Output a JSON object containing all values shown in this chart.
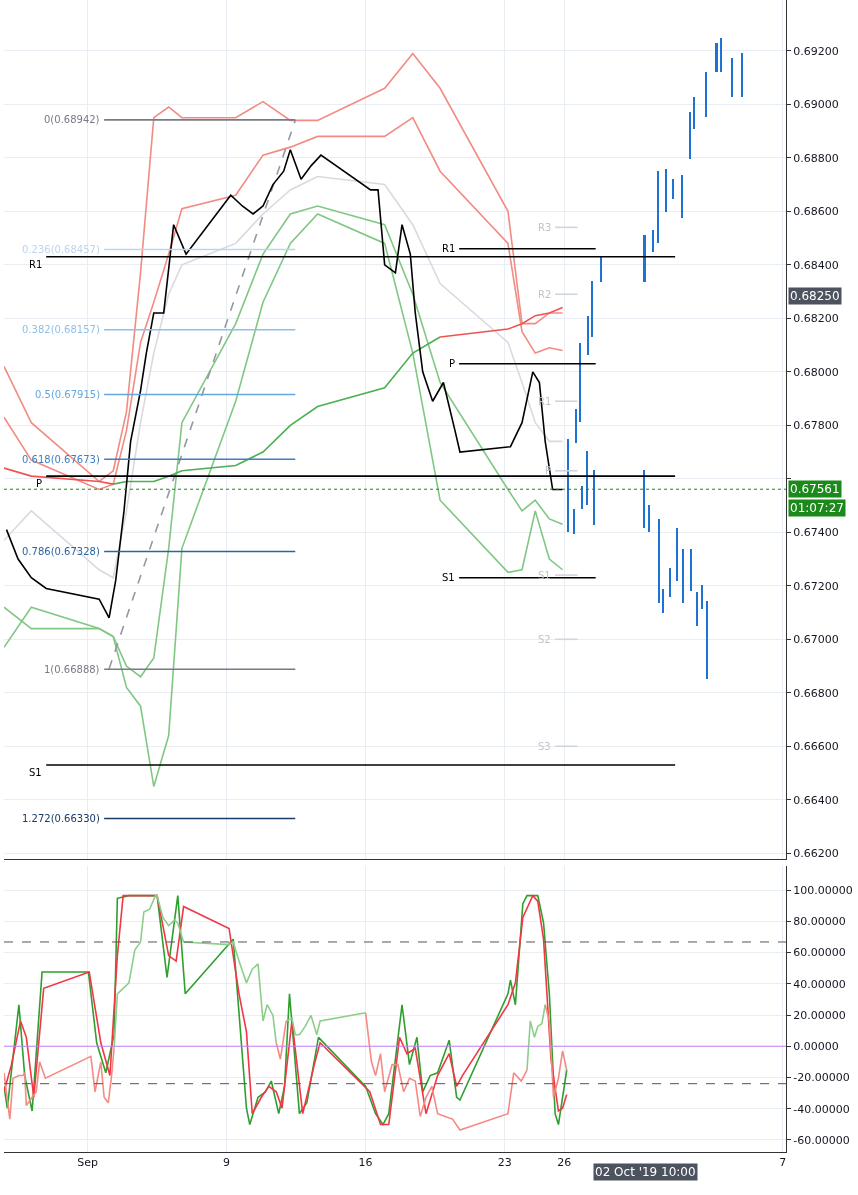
{
  "chart_data": [
    {
      "type": "line",
      "tick_labels": "y",
      "grid": true,
      "xlim": [
        "2019-08-28T19:00",
        "2019-10-07T04:00"
      ],
      "ylim": [
        0.6618,
        0.6939
      ],
      "xticks": [
        {
          "value": "2019-09-02",
          "label": null
        },
        {
          "value": "2019-09-09",
          "label": null
        },
        {
          "value": "2019-09-16",
          "label": null
        },
        {
          "value": "2019-09-23",
          "label": null
        },
        {
          "value": "2019-09-26",
          "label": null
        },
        {
          "value": "2019-10-07",
          "label": null
        }
      ],
      "yticks": [
        {
          "value": 0.662,
          "label": "0.66200"
        },
        {
          "value": 0.664,
          "label": "0.66400"
        },
        {
          "value": 0.666,
          "label": "0.66600"
        },
        {
          "value": 0.668,
          "label": "0.66800"
        },
        {
          "value": 0.67,
          "label": "0.67000"
        },
        {
          "value": 0.672,
          "label": "0.67200"
        },
        {
          "value": 0.674,
          "label": "0.67400"
        },
        {
          "value": 0.676,
          "label": null
        },
        {
          "value": 0.678,
          "label": "0.67800"
        },
        {
          "value": 0.68,
          "label": "0.68000"
        },
        {
          "value": 0.682,
          "label": "0.68200"
        },
        {
          "value": 0.684,
          "label": "0.68400"
        },
        {
          "value": 0.686,
          "label": "0.68600"
        },
        {
          "value": 0.688,
          "label": "0.68800"
        },
        {
          "value": 0.69,
          "label": "0.69000"
        },
        {
          "value": 0.692,
          "label": "0.69200"
        }
      ],
      "series": [
        {
          "color": "#f28b82",
          "x": [
            "2019-08-28T19:00",
            "2019-08-30T04:00",
            "2019-09-02T14:00",
            "2019-09-03T07:00",
            "2019-09-03T23:00",
            "2019-09-04T16:00",
            "2019-09-05T08:00",
            "2019-09-06T02:00",
            "2019-09-06T18:00",
            "2019-09-09T11:00",
            "2019-09-10T20:00",
            "2019-09-12T05:00",
            "2019-09-13T14:00",
            "2019-09-16T23:00",
            "2019-09-18T09:00",
            "2019-09-19T18:00",
            "2019-09-23T04:00",
            "2019-09-23T21:00",
            "2019-09-24T13:00",
            "2019-09-25T06:00",
            "2019-09-25T22:00"
          ],
          "values": [
            0.6802,
            0.6781,
            0.6759,
            0.6763,
            0.6785,
            0.6837,
            0.6895,
            0.6899,
            0.6895,
            0.6895,
            0.6901,
            0.6894,
            0.6894,
            0.6906,
            0.6919,
            0.6906,
            0.686,
            0.6818,
            0.6818,
            0.6822,
            0.6822
          ]
        },
        {
          "color": "#f28b82",
          "x": [
            "2019-08-28T19:00",
            "2019-08-30T04:00",
            "2019-09-02T14:00",
            "2019-09-03T07:00",
            "2019-09-03T23:00",
            "2019-09-04T16:00",
            "2019-09-05T08:00",
            "2019-09-06T02:00",
            "2019-09-06T18:00",
            "2019-09-09T11:00",
            "2019-09-10T20:00",
            "2019-09-12T05:00",
            "2019-09-13T14:00",
            "2019-09-16T23:00",
            "2019-09-18T09:00",
            "2019-09-19T18:00",
            "2019-09-23T04:00",
            "2019-09-23T21:00",
            "2019-09-24T13:00",
            "2019-09-25T06:00",
            "2019-09-25T22:00"
          ],
          "values": [
            0.6783,
            0.6767,
            0.6756,
            0.6758,
            0.6778,
            0.6811,
            0.6826,
            0.6844,
            0.6861,
            0.6866,
            0.6881,
            0.6884,
            0.6888,
            0.6888,
            0.6895,
            0.6875,
            0.6848,
            0.6815,
            0.6807,
            0.6809,
            0.6808
          ]
        },
        {
          "color": "#d9dae0",
          "x": [
            "2019-08-28T19:00",
            "2019-08-30T04:00",
            "2019-09-02T14:00",
            "2019-09-03T07:00",
            "2019-09-03T23:00",
            "2019-09-04T16:00",
            "2019-09-05T08:00",
            "2019-09-06T02:00",
            "2019-09-06T18:00",
            "2019-09-09T11:00",
            "2019-09-10T20:00",
            "2019-09-12T05:00",
            "2019-09-13T14:00",
            "2019-09-16T23:00",
            "2019-09-18T09:00",
            "2019-09-19T18:00",
            "2019-09-23T04:00",
            "2019-09-23T21:00",
            "2019-09-24T13:00",
            "2019-09-25T06:00",
            "2019-09-25T22:00"
          ],
          "values": [
            0.6737,
            0.6748,
            0.6726,
            0.6723,
            0.6748,
            0.6781,
            0.6807,
            0.6829,
            0.684,
            0.6848,
            0.6859,
            0.6868,
            0.6873,
            0.687,
            0.6855,
            0.6833,
            0.6811,
            0.6796,
            0.6781,
            0.6774,
            0.6774
          ]
        },
        {
          "color": "#81c784",
          "x": [
            "2019-08-28T19:00",
            "2019-08-30T04:00",
            "2019-09-02T14:00",
            "2019-09-03T07:00",
            "2019-09-03T23:00",
            "2019-09-04T16:00",
            "2019-09-05T08:00",
            "2019-09-06T02:00",
            "2019-09-06T18:00",
            "2019-09-09T11:00",
            "2019-09-10T20:00",
            "2019-09-12T05:00",
            "2019-09-13T14:00",
            "2019-09-16T23:00",
            "2019-09-18T09:00",
            "2019-09-19T18:00",
            "2019-09-23T04:00",
            "2019-09-23T21:00",
            "2019-09-24T13:00",
            "2019-09-25T06:00",
            "2019-09-25T22:00"
          ],
          "values": [
            0.6712,
            0.6704,
            0.6704,
            0.6701,
            0.669,
            0.6686,
            0.6693,
            0.6734,
            0.6781,
            0.6818,
            0.6844,
            0.6859,
            0.6862,
            0.6855,
            0.6829,
            0.6796,
            0.6756,
            0.6748,
            0.6752,
            0.6745,
            0.6743
          ]
        },
        {
          "color": "#81c784",
          "x": [
            "2019-08-28T19:00",
            "2019-08-30T04:00",
            "2019-09-02T14:00",
            "2019-09-03T07:00",
            "2019-09-03T23:00",
            "2019-09-04T16:00",
            "2019-09-05T08:00",
            "2019-09-06T02:00",
            "2019-09-06T18:00",
            "2019-09-09T11:00",
            "2019-09-10T20:00",
            "2019-09-12T05:00",
            "2019-09-13T14:00",
            "2019-09-16T23:00",
            "2019-09-18T09:00",
            "2019-09-19T18:00",
            "2019-09-23T04:00",
            "2019-09-23T21:00",
            "2019-09-24T13:00",
            "2019-09-25T06:00",
            "2019-09-25T22:00"
          ],
          "values": [
            0.6697,
            0.6712,
            0.6704,
            0.6701,
            0.6682,
            0.6675,
            0.6645,
            0.6664,
            0.6734,
            0.6789,
            0.6826,
            0.6848,
            0.6859,
            0.6848,
            0.6807,
            0.6752,
            0.6725,
            0.6726,
            0.6748,
            0.673,
            0.6726
          ]
        },
        {
          "color": "#ef5350",
          "x": [
            "2019-08-28T19:00",
            "2019-08-30T04:00",
            "2019-09-02T14:00",
            "2019-09-03T07:00"
          ],
          "values": [
            0.6764,
            0.6761,
            0.6759,
            0.6758
          ]
        },
        {
          "color": "#4caf50",
          "x": [
            "2019-09-03T07:00",
            "2019-09-03T23:00",
            "2019-09-04T16:00",
            "2019-09-05T08:00",
            "2019-09-06T02:00",
            "2019-09-06T18:00",
            "2019-09-09T11:00",
            "2019-09-10T20:00",
            "2019-09-12T05:00",
            "2019-09-13T14:00",
            "2019-09-16T23:00",
            "2019-09-18T09:00",
            "2019-09-19T18:00"
          ],
          "values": [
            0.6758,
            0.6759,
            0.6759,
            0.6759,
            0.6761,
            0.6763,
            0.6765,
            0.677,
            0.678,
            0.6787,
            0.6794,
            0.6807,
            0.6813
          ]
        },
        {
          "color": "#ef5350",
          "x": [
            "2019-09-19T18:00",
            "2019-09-23T04:00",
            "2019-09-23T21:00",
            "2019-09-24T13:00",
            "2019-09-25T06:00",
            "2019-09-25T22:00"
          ],
          "values": [
            0.6813,
            0.6816,
            0.6818,
            0.6821,
            0.6822,
            0.6824
          ]
        },
        {
          "color": "#9598a1",
          "line_style": "dashed",
          "x": [
            "2019-09-03T02:00",
            "2019-09-12T11:00"
          ],
          "values": [
            0.6689,
            0.6894
          ]
        },
        {
          "color": "#000000",
          "x": [
            "2019-08-28T22:00",
            "2019-08-29T12:00",
            "2019-08-30T04:00",
            "2019-08-30T22:00",
            "2019-09-02T14:00",
            "2019-09-03T02:00",
            "2019-09-03T10:00",
            "2019-09-03T20:00",
            "2019-09-04T04:00",
            "2019-09-04T16:00",
            "2019-09-04T23:00",
            "2019-09-05T08:00",
            "2019-09-05T20:00",
            "2019-09-06T08:00",
            "2019-09-06T23:00",
            "2019-09-09T05:00",
            "2019-09-09T19:00",
            "2019-09-10T08:00",
            "2019-09-10T20:00",
            "2019-09-11T08:00",
            "2019-09-11T21:00",
            "2019-09-12T05:00",
            "2019-09-12T18:00",
            "2019-09-13T06:00",
            "2019-09-13T18:00",
            "2019-09-16T06:00",
            "2019-09-16T15:00",
            "2019-09-16T23:00",
            "2019-09-17T12:00",
            "2019-09-17T20:00",
            "2019-09-18T06:00",
            "2019-09-18T12:00",
            "2019-09-18T21:00",
            "2019-09-19T09:00",
            "2019-09-19T22:00",
            "2019-09-20T12:00",
            "2019-09-20T18:00",
            "2019-09-23T07:00",
            "2019-09-23T21:00",
            "2019-09-24T10:00",
            "2019-09-24T18:00",
            "2019-09-25T01:00",
            "2019-09-25T10:00",
            "2019-09-25T22:00"
          ],
          "values": [
            0.6741,
            0.673,
            0.6723,
            0.6719,
            0.6715,
            0.6708,
            0.6722,
            0.6748,
            0.6774,
            0.6793,
            0.6807,
            0.6822,
            0.6822,
            0.6855,
            0.6844,
            0.6866,
            0.6862,
            0.6859,
            0.6862,
            0.687,
            0.6875,
            0.6883,
            0.6872,
            0.6877,
            0.6881,
            0.6868,
            0.6868,
            0.684,
            0.6837,
            0.6855,
            0.6844,
            0.6822,
            0.68,
            0.6789,
            0.6796,
            0.6778,
            0.677,
            0.6772,
            0.6781,
            0.68,
            0.6796,
            0.6774,
            0.6756,
            0.6756
          ]
        },
        {
          "type": "bar",
          "color": "#1e73d2",
          "x": [
            "2019-09-26T04:00",
            "2019-09-26T12:00",
            "2019-09-26T14:00",
            "2019-09-26T19:00",
            "2019-09-26T22:00",
            "2019-09-27T03:00",
            "2019-09-27T05:00",
            "2019-09-27T10:00",
            "2019-09-27T12:00",
            "2019-09-27T20:00",
            "2019-09-30T00:00",
            "2019-09-30T01:00",
            "2019-09-30T07:00",
            "2019-09-30T11:00",
            "2019-09-30T17:00",
            "2019-09-30T18:00",
            "2019-09-30T23:00",
            "2019-10-01T03:00",
            "2019-10-01T08:00",
            "2019-10-01T12:00",
            "2019-10-01T16:00",
            "2019-10-01T22:00",
            "2019-10-01T23:00",
            "2019-10-02T08:00",
            "2019-10-02T09:00",
            "2019-10-02T13:00",
            "2019-10-02T16:00",
            "2019-10-02T23:00",
            "2019-10-03T03:00",
            "2019-10-03T04:00",
            "2019-10-03T16:00",
            "2019-10-03T22:00",
            "2019-10-04T11:00",
            "2019-10-04T23:00"
          ],
          "base": [
            0.67403,
            0.67395,
            0.67733,
            0.67811,
            0.67487,
            0.67502,
            0.68061,
            0.6813,
            0.67428,
            0.68336,
            0.67417,
            0.68336,
            0.67403,
            0.68447,
            0.68483,
            0.67134,
            0.67098,
            0.68597,
            0.6716,
            0.68645,
            0.67219,
            0.68575,
            0.67134,
            0.68796,
            0.67182,
            0.68906,
            0.6705,
            0.67112,
            0.68954,
            0.66851,
            0.69119,
            0.69119,
            0.69027,
            0.69027
          ],
          "values": [
            0.00345,
            0.00092,
            0.00129,
            0.00298,
            0.00085,
            0.00202,
            0.00147,
            0.0021,
            0.00206,
            0.00092,
            0.00217,
            0.00177,
            0.00099,
            0.00085,
            0.00268,
            0.00316,
            0.00091,
            0.00162,
            0.00107,
            0.00077,
            0.00198,
            0.00162,
            0.00202,
            0.00176,
            0.00154,
            0.00121,
            0.00125,
            0.00092,
            0.00165,
            0.00291,
            0.0011,
            0.00129,
            0.00147,
            0.00166
          ]
        },
        {
          "name": "0(0.68942)",
          "color": "#787b86",
          "x": [
            "2019-09-02T20:00",
            "2019-09-12T11:00"
          ],
          "values": [
            0.68942,
            0.68942
          ]
        },
        {
          "name": "0.236(0.68457)",
          "color": "#bcd5ee",
          "x": [
            "2019-09-02T20:00",
            "2019-09-12T11:00"
          ],
          "values": [
            0.68457,
            0.68457
          ]
        },
        {
          "name": "0.382(0.68157)",
          "color": "#90bfe6",
          "x": [
            "2019-09-02T20:00",
            "2019-09-12T11:00"
          ],
          "values": [
            0.68157,
            0.68157
          ]
        },
        {
          "name": "0.5(0.67915)",
          "color": "#64a6e0",
          "x": [
            "2019-09-02T20:00",
            "2019-09-12T11:00"
          ],
          "values": [
            0.67915,
            0.67915
          ]
        },
        {
          "name": "0.618(0.67673)",
          "color": "#3d7fc0",
          "x": [
            "2019-09-02T20:00",
            "2019-09-12T11:00"
          ],
          "values": [
            0.67673,
            0.67673
          ]
        },
        {
          "name": "0.786(0.67328)",
          "color": "#2d63a0",
          "x": [
            "2019-09-02T20:00",
            "2019-09-12T11:00"
          ],
          "values": [
            0.67328,
            0.67328
          ]
        },
        {
          "name": "1(0.66888)",
          "color": "#787b86",
          "x": [
            "2019-09-02T20:00",
            "2019-09-12T11:00"
          ],
          "values": [
            0.66888,
            0.66888
          ]
        },
        {
          "name": "1.272(0.66330)",
          "color": "#1a3a6b",
          "x": [
            "2019-09-02T20:00",
            "2019-09-12T11:00"
          ],
          "values": [
            0.6633,
            0.6633
          ]
        },
        {
          "name": "R1",
          "color": "#000000",
          "x": [
            "2019-08-30T22:00",
            "2019-10-01T14:00"
          ],
          "values": [
            0.6843,
            0.6843
          ]
        },
        {
          "name": "P",
          "color": "#000000",
          "x": [
            "2019-08-30T22:00",
            "2019-10-01T14:00"
          ],
          "values": [
            0.6761,
            0.6761
          ]
        },
        {
          "name": "S1",
          "color": "#000000",
          "x": [
            "2019-08-30T22:00",
            "2019-10-01T14:00"
          ],
          "values": [
            0.6653,
            0.6653
          ]
        },
        {
          "name": "R1",
          "color": "#000000",
          "x": [
            "2019-09-20T17:00",
            "2019-09-27T14:00"
          ],
          "values": [
            0.6846,
            0.6846
          ]
        },
        {
          "name": "P",
          "color": "#000000",
          "x": [
            "2019-09-20T17:00",
            "2019-09-27T14:00"
          ],
          "values": [
            0.6803,
            0.6803
          ]
        },
        {
          "name": "S1",
          "color": "#000000",
          "x": [
            "2019-09-20T17:00",
            "2019-09-27T14:00"
          ],
          "values": [
            0.6723,
            0.6723
          ]
        },
        {
          "name": "R3",
          "color": "#d1d4dc",
          "x": [
            "2019-09-25T13:00",
            "2019-09-26T16:00"
          ],
          "values": [
            0.6854,
            0.6854
          ]
        },
        {
          "name": "R2",
          "color": "#d1d4dc",
          "x": [
            "2019-09-25T13:00",
            "2019-09-26T16:00"
          ],
          "values": [
            0.6829,
            0.6829
          ]
        },
        {
          "name": "R1",
          "color": "#d1d4dc",
          "x": [
            "2019-09-25T13:00",
            "2019-09-26T16:00"
          ],
          "values": [
            0.6789,
            0.6789
          ]
        },
        {
          "name": "P",
          "color": "#d1d4dc",
          "x": [
            "2019-09-25T13:00",
            "2019-09-26T16:00"
          ],
          "values": [
            0.6763,
            0.6763
          ]
        },
        {
          "name": "S1",
          "color": "#d1d4dc",
          "x": [
            "2019-09-25T13:00",
            "2019-09-26T16:00"
          ],
          "values": [
            0.6724,
            0.6724
          ]
        },
        {
          "name": "S2",
          "color": "#d1d4dc",
          "x": [
            "2019-09-25T13:00",
            "2019-09-26T16:00"
          ],
          "values": [
            0.67,
            0.67
          ]
        },
        {
          "name": "S3",
          "color": "#d1d4dc",
          "x": [
            "2019-09-25T13:00",
            "2019-09-26T16:00"
          ],
          "values": [
            0.666,
            0.666
          ]
        }
      ],
      "ref_lines": [
        {
          "axis": "y",
          "value": 0.67561,
          "label": "0.67561",
          "color": "#1b8a1b",
          "line_style": "dotted"
        }
      ],
      "annotations": [
        "0.68250",
        "01:07:27"
      ]
    },
    {
      "type": "line",
      "grid": true,
      "xlim": [
        "2019-08-28T19:00",
        "2019-10-07T04:00"
      ],
      "ylim": [
        -67.7,
        115.7
      ],
      "xticks": [
        {
          "value": "2019-09-02",
          "label": "Sep"
        },
        {
          "value": "2019-09-09",
          "label": "9"
        },
        {
          "value": "2019-09-16",
          "label": "16"
        },
        {
          "value": "2019-09-23",
          "label": "23"
        },
        {
          "value": "2019-09-26",
          "label": "26"
        },
        {
          "value": "2019-10-07",
          "label": "7"
        }
      ],
      "yticks": [
        {
          "value": -60,
          "label": "-60.00000"
        },
        {
          "value": -40,
          "label": "-40.00000"
        },
        {
          "value": -20,
          "label": "-20.00000"
        },
        {
          "value": 0,
          "label": "0.00000"
        },
        {
          "value": 20,
          "label": "20.00000"
        },
        {
          "value": 40,
          "label": "40.00000"
        },
        {
          "value": 60,
          "label": "60.00000"
        },
        {
          "value": 80,
          "label": "80.00000"
        },
        {
          "value": 100,
          "label": "100.00000"
        }
      ],
      "series": [
        {
          "color": "#2e9f2e",
          "x": [
            "2019-08-28T19:00",
            "2019-08-28T23:00",
            "2019-08-29T13:00",
            "2019-08-29T20:00",
            "2019-08-30T05:00",
            "2019-08-30T17:00",
            "2019-09-02T01:00",
            "2019-09-02T11:00",
            "2019-09-02T22:00",
            "2019-09-03T08:00",
            "2019-09-03T12:00",
            "2019-09-04T02:00",
            "2019-09-05T01:00",
            "2019-09-05T12:00",
            "2019-09-06T00:00",
            "2019-09-06T13:00",
            "2019-09-06T22:00",
            "2019-09-09T08:00",
            "2019-09-10T00:00",
            "2019-09-10T04:00",
            "2019-09-10T14:00",
            "2019-09-10T23:00",
            "2019-09-11T06:00",
            "2019-09-11T15:00",
            "2019-09-11T22:00",
            "2019-09-12T04:00",
            "2019-09-12T16:00",
            "2019-09-13T01:00",
            "2019-09-13T15:00",
            "2019-09-16T00:00",
            "2019-09-16T12:00",
            "2019-09-16T21:00",
            "2019-09-17T04:00",
            "2019-09-17T20:00",
            "2019-09-18T05:00",
            "2019-09-18T14:00",
            "2019-09-18T21:00",
            "2019-09-19T06:00",
            "2019-09-19T15:00",
            "2019-09-20T05:00",
            "2019-09-20T14:00",
            "2019-09-20T18:00",
            "2019-09-23T04:00",
            "2019-09-23T07:00",
            "2019-09-23T13:00",
            "2019-09-23T22:00",
            "2019-09-24T03:00",
            "2019-09-24T16:00",
            "2019-09-24T23:00",
            "2019-09-25T06:00",
            "2019-09-25T13:00",
            "2019-09-25T17:00",
            "2019-09-26T03:00"
          ],
          "values": [
            -25.7,
            -39.7,
            26.6,
            -18.8,
            -41.5,
            47.6,
            47.6,
            2.2,
            -17.0,
            7.4,
            94.8,
            96.5,
            96.5,
            96.5,
            44.1,
            96.5,
            33.6,
            68.6,
            -39.7,
            -50.2,
            -32.7,
            -29.2,
            -22.3,
            -43.2,
            -25.7,
            33.6,
            -43.2,
            -36.2,
            5.7,
            -25.7,
            -43.2,
            -50.2,
            -43.2,
            26.6,
            -11.8,
            5.7,
            -29.2,
            -18.8,
            -17.0,
            3.9,
            -32.7,
            -34.5,
            33.6,
            42.4,
            26.6,
            91.3,
            96.5,
            96.5,
            79.0,
            33.6,
            -43.2,
            -50.2,
            -15.3
          ]
        },
        {
          "color": "#f23645",
          "x": [
            "2019-08-28T19:00",
            "2019-08-29T04:00",
            "2019-08-29T15:00",
            "2019-08-29T22:00",
            "2019-08-30T07:00",
            "2019-08-30T19:00",
            "2019-09-02T02:00",
            "2019-09-02T16:00",
            "2019-09-03T03:00",
            "2019-09-03T12:00",
            "2019-09-03T19:00",
            "2019-09-05T12:00",
            "2019-09-06T02:00",
            "2019-09-06T11:00",
            "2019-09-06T20:00",
            "2019-09-09T03:00",
            "2019-09-09T15:00",
            "2019-09-10T00:00",
            "2019-09-10T07:00",
            "2019-09-10T18:00",
            "2019-09-11T03:00",
            "2019-09-11T12:00",
            "2019-09-11T19:00",
            "2019-09-12T07:00",
            "2019-09-12T20:00",
            "2019-09-13T10:00",
            "2019-09-13T17:00",
            "2019-09-16T05:00",
            "2019-09-16T18:00",
            "2019-09-17T04:00",
            "2019-09-17T17:00",
            "2019-09-18T02:00",
            "2019-09-18T12:00",
            "2019-09-19T01:00",
            "2019-09-19T15:00",
            "2019-09-20T05:00",
            "2019-09-20T14:00",
            "2019-09-20T21:00",
            "2019-09-23T04:00",
            "2019-09-23T13:00",
            "2019-09-23T22:00",
            "2019-09-24T10:00",
            "2019-09-24T16:00",
            "2019-09-24T23:00",
            "2019-09-25T08:00",
            "2019-09-25T17:00",
            "2019-09-25T22:00",
            "2019-09-26T03:00"
          ],
          "values": [
            -29.2,
            -11.8,
            16.2,
            5.7,
            -32.7,
            37.1,
            47.6,
            2.2,
            -18.8,
            58.1,
            96.5,
            96.5,
            58.1,
            54.6,
            89.5,
            75.5,
            33.6,
            9.2,
            -43.2,
            -32.7,
            -25.7,
            -29.2,
            -39.7,
            16.2,
            -43.2,
            -11.8,
            2.2,
            -29.2,
            -50.2,
            -50.2,
            5.7,
            -4.8,
            -1.3,
            -43.2,
            -18.8,
            -4.8,
            -25.7,
            -18.8,
            26.6,
            40.6,
            82.5,
            96.5,
            93.0,
            68.6,
            -8.3,
            -41.5,
            -39.7,
            -31.0
          ]
        },
        {
          "color": "#f58a85",
          "x": [
            "2019-08-28T19:00",
            "2019-08-29T02:00",
            "2019-08-29T06:00",
            "2019-08-29T13:00",
            "2019-08-29T18:00",
            "2019-08-29T20:00",
            "2019-08-29T22:00",
            "2019-08-30T05:00",
            "2019-08-30T10:00",
            "2019-08-30T14:00",
            "2019-08-30T21:00",
            "2019-09-02T04:00",
            "2019-09-02T09:00",
            "2019-09-02T16:00",
            "2019-09-02T20:00",
            "2019-09-03T01:00",
            "2019-09-03T05:00",
            "2019-09-03T08:00"
          ],
          "values": [
            -17.0,
            -46.7,
            -20.5,
            -18.8,
            -18.8,
            -17.0,
            -38.0,
            -32.7,
            -29.2,
            -10.0,
            -20.5,
            -6.5,
            -29.2,
            -10.0,
            -32.7,
            -36.2,
            -18.8,
            -1.3
          ]
        },
        {
          "color": "#8bcf8b",
          "x": [
            "2019-09-03T08:00",
            "2019-09-03T12:00",
            "2019-09-03T19:00",
            "2019-09-04T02:00",
            "2019-09-04T09:00",
            "2019-09-04T16:00",
            "2019-09-04T20:00",
            "2019-09-05T03:00",
            "2019-09-05T10:00",
            "2019-09-05T12:00",
            "2019-09-05T19:00",
            "2019-09-06T02:00",
            "2019-09-06T09:00",
            "2019-09-06T13:00",
            "2019-09-06T20:00",
            "2019-09-09T03:00",
            "2019-09-09T08:00",
            "2019-09-09T15:00",
            "2019-09-10T00:00",
            "2019-09-10T07:00",
            "2019-09-10T14:00",
            "2019-09-10T20:00",
            "2019-09-11T01:00",
            "2019-09-11T08:00",
            "2019-09-11T12:00"
          ],
          "values": [
            -1.3,
            33.6,
            37.1,
            40.6,
            61.6,
            66.8,
            86.0,
            87.8,
            96.5,
            96.5,
            82.5,
            77.3,
            80.8,
            79.0,
            66.8,
            65.1,
            66.8,
            54.6,
            40.6,
            49.4,
            52.8,
            16.2,
            26.6,
            19.7,
            2.2
          ]
        },
        {
          "color": "#f58a85",
          "x": [
            "2019-09-11T12:00",
            "2019-09-11T17:00",
            "2019-09-12T00:00"
          ],
          "values": [
            2.2,
            -8.3,
            16.2
          ]
        },
        {
          "color": "#8bcf8b",
          "x": [
            "2019-09-12T00:00",
            "2019-09-12T07:00",
            "2019-09-12T11:00",
            "2019-09-12T16:00",
            "2019-09-12T23:00",
            "2019-09-13T06:00",
            "2019-09-13T13:00",
            "2019-09-13T17:00",
            "2019-09-16T00:00"
          ],
          "values": [
            16.2,
            17.9,
            7.4,
            7.4,
            12.7,
            19.7,
            7.4,
            16.2,
            21.4
          ]
        },
        {
          "color": "#f58a85",
          "x": [
            "2019-09-16T00:00",
            "2019-09-16T07:00",
            "2019-09-16T12:00",
            "2019-09-16T18:00",
            "2019-09-16T23:00",
            "2019-09-17T08:00",
            "2019-09-17T15:00",
            "2019-09-17T22:00",
            "2019-09-18T05:00",
            "2019-09-18T12:00",
            "2019-09-18T18:00",
            "2019-09-19T01:00",
            "2019-09-19T08:00",
            "2019-09-19T15:00",
            "2019-09-20T00:00",
            "2019-09-20T09:00",
            "2019-09-20T18:00",
            "2019-09-23T04:00",
            "2019-09-23T11:00",
            "2019-09-23T20:00",
            "2019-09-24T03:00"
          ],
          "values": [
            21.4,
            -10.0,
            -18.8,
            -4.8,
            -29.2,
            -11.8,
            -11.8,
            -29.2,
            -20.5,
            -22.3,
            -45.0,
            -32.7,
            -25.7,
            -43.2,
            -45.0,
            -46.7,
            -53.7,
            -43.2,
            -17.0,
            -22.3,
            -15.3
          ]
        },
        {
          "color": "#8bcf8b",
          "x": [
            "2019-09-24T03:00",
            "2019-09-24T07:00",
            "2019-09-24T12:00",
            "2019-09-24T16:00",
            "2019-09-24T21:00",
            "2019-09-25T01:00"
          ],
          "values": [
            -15.3,
            16.2,
            5.7,
            12.7,
            14.4,
            26.6
          ]
        },
        {
          "color": "#f58a85",
          "x": [
            "2019-09-25T01:00",
            "2019-09-25T06:00",
            "2019-09-25T11:00",
            "2019-09-25T17:00",
            "2019-09-25T22:00",
            "2019-09-26T03:00"
          ],
          "values": [
            26.6,
            16.2,
            -32.7,
            -20.5,
            -3.0,
            -15.3
          ]
        }
      ],
      "ref_lines": [
        {
          "axis": "y",
          "value": 66.8,
          "color": "#555555",
          "line_style": "dashed"
        },
        {
          "axis": "y",
          "value": -24,
          "color": "#555555",
          "line_style": "dashed"
        },
        {
          "axis": "y",
          "value": 0,
          "color": "#c77dff",
          "line_style": "solid"
        }
      ],
      "annotations": [
        "02 Oct '19 10:00"
      ]
    }
  ]
}
